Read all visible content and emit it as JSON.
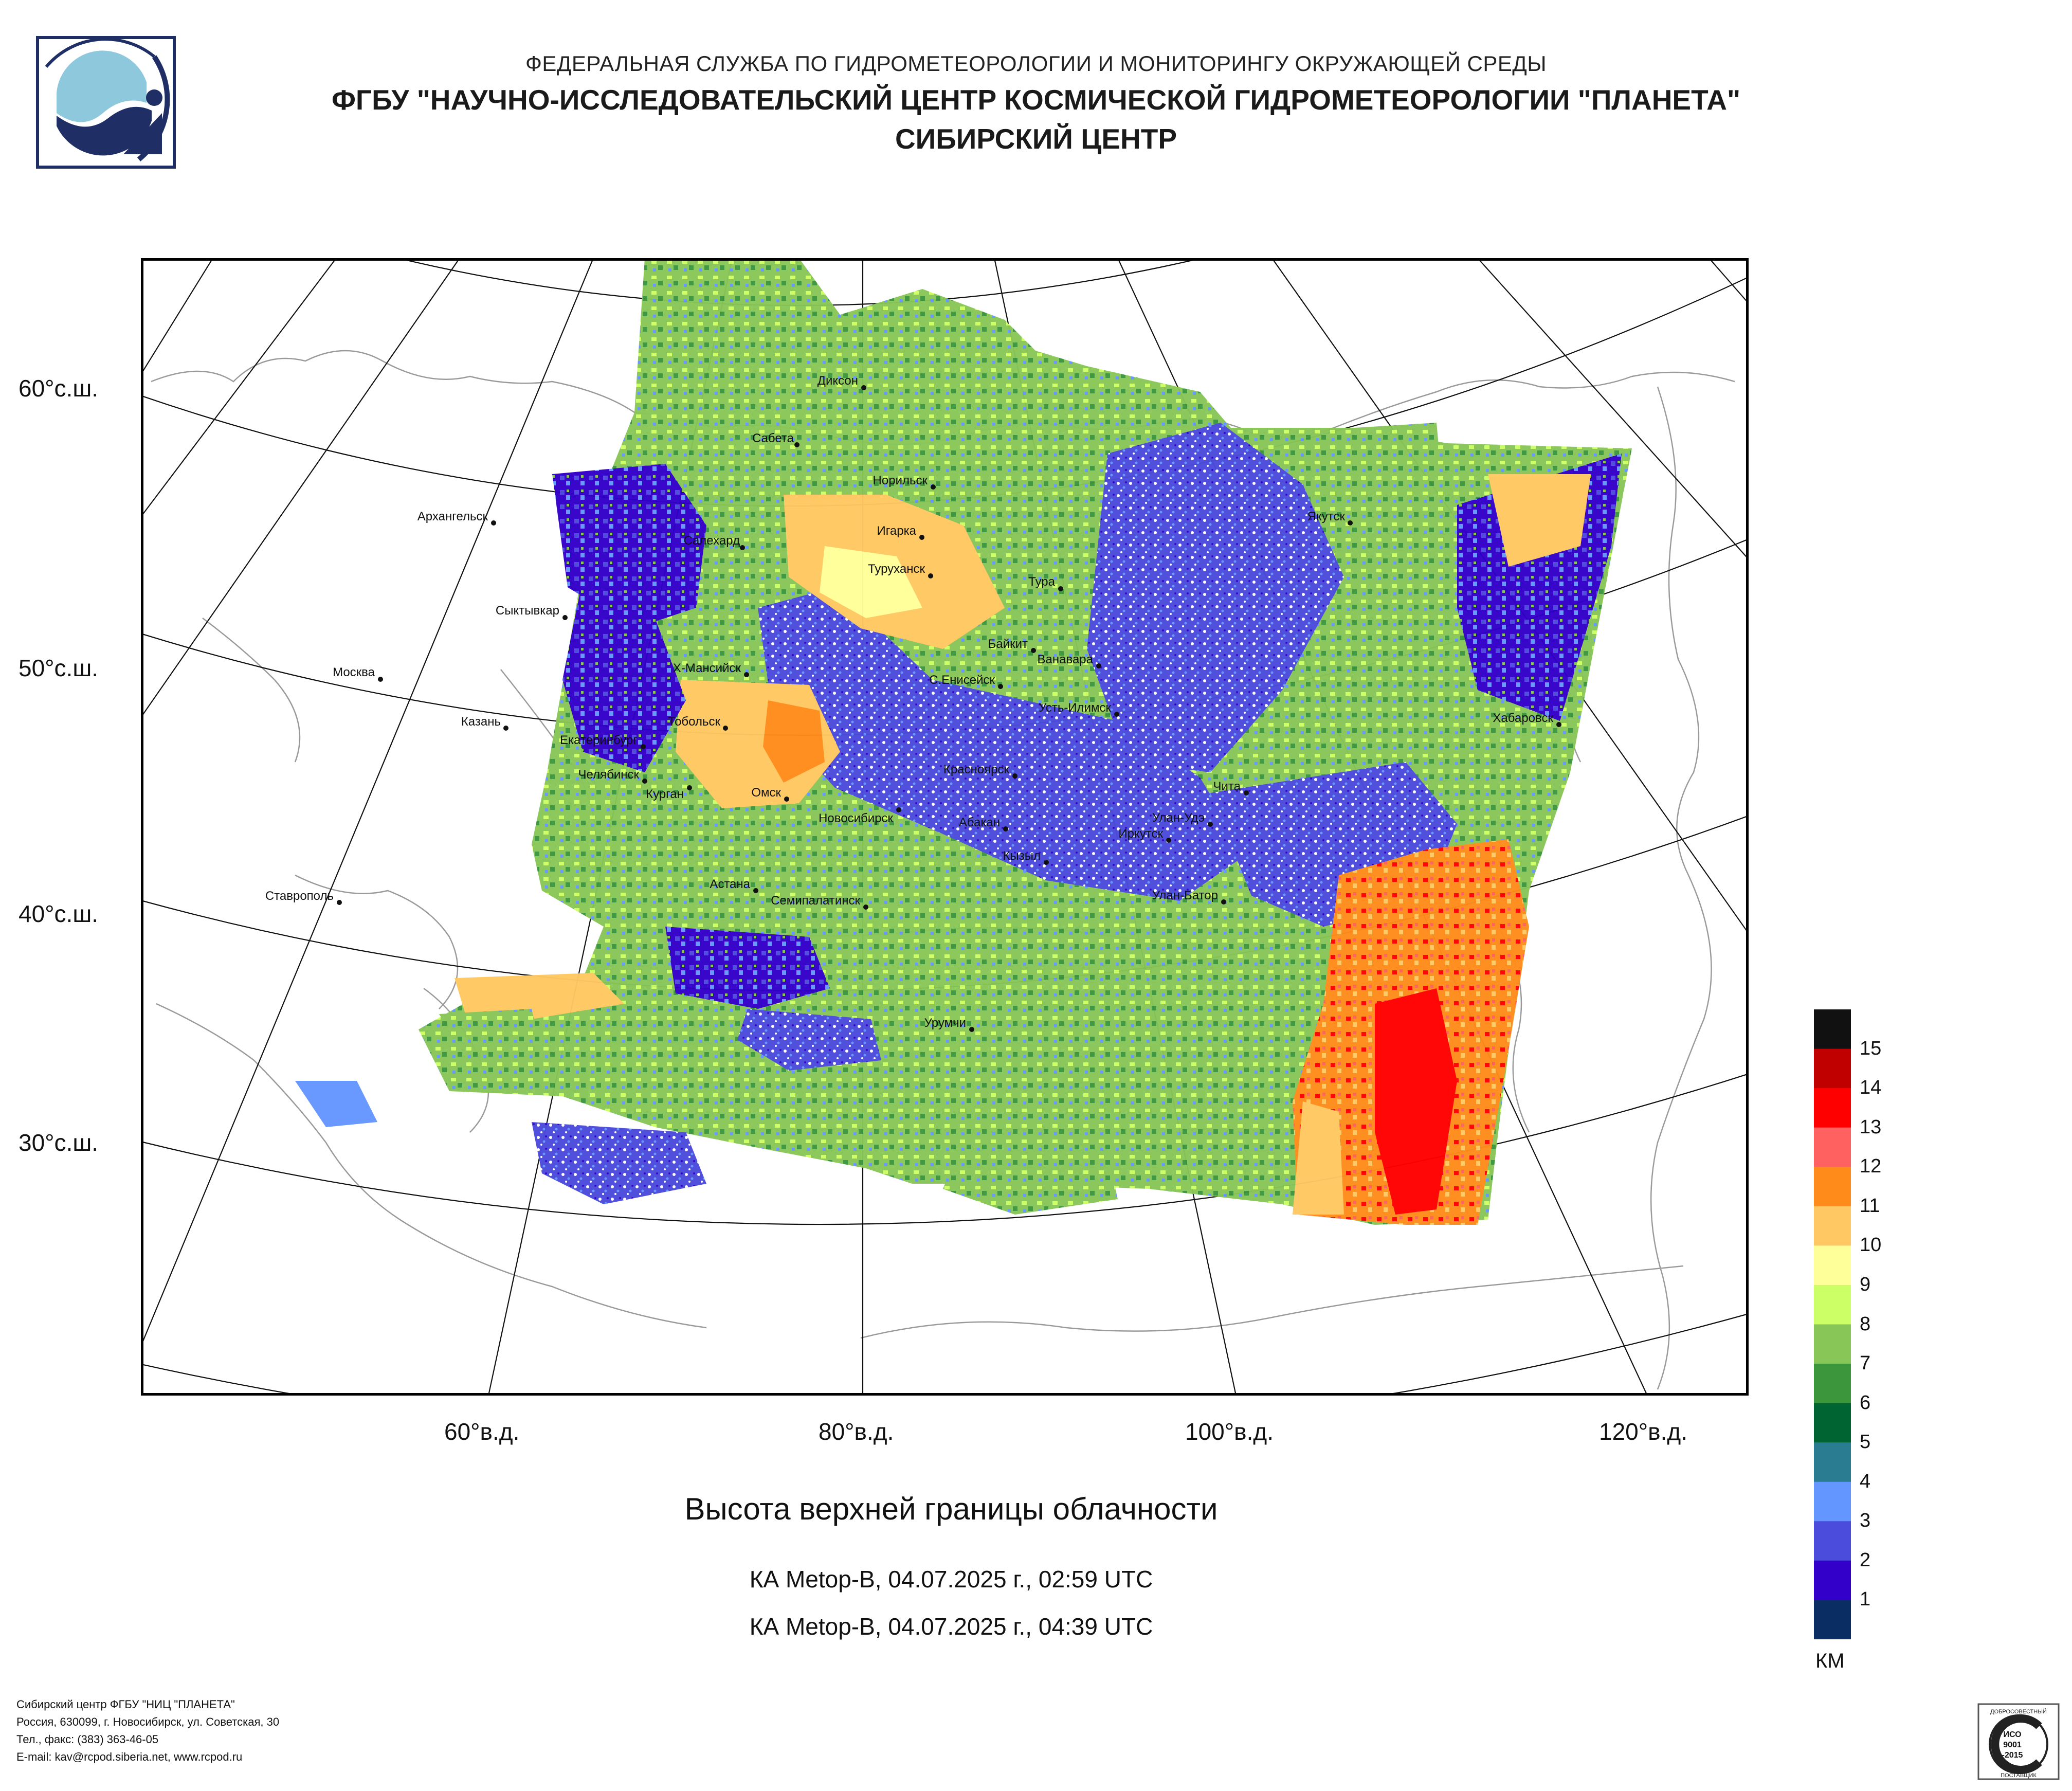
{
  "header": {
    "line1": "ФЕДЕРАЛЬНАЯ СЛУЖБА ПО ГИДРОМЕТЕОРОЛОГИИ И МОНИТОРИНГУ ОКРУЖАЮЩЕЙ СРЕДЫ",
    "line2": "ФГБУ \"НАУЧНО-ИССЛЕДОВАТЕЛЬСКИЙ ЦЕНТР КОСМИЧЕСКОЙ ГИДРОМЕТЕОРОЛОГИИ \"ПЛАНЕТА\"",
    "line3": "СИБИРСКИЙ ЦЕНТР"
  },
  "map": {
    "lat_labels": [
      "60°с.ш.",
      "50°с.ш.",
      "40°с.ш.",
      "30°с.ш."
    ],
    "lon_labels": [
      "60°в.д.",
      "80°в.д.",
      "100°в.д.",
      "120°в.д."
    ],
    "cities": [
      "Диксон",
      "Сабета",
      "Норильск",
      "Игарка",
      "Салехард",
      "Архангельск",
      "Туруханск",
      "Тура",
      "Якутск",
      "Сыктывкар",
      "Байкит",
      "Ванавара",
      "Х-Мансийск",
      "С.Енисейск",
      "Москва",
      "Усть-Илимск",
      "Казань",
      "Тобольск",
      "Екатеринбург",
      "Хабаровск",
      "Красноярск",
      "Челябинск",
      "Курган",
      "Омск",
      "Чита",
      "Новосибирск",
      "Абакан",
      "Улан-Удэ",
      "Иркутск",
      "Кызыл",
      "Астана",
      "Ставрополь",
      "Улан-Батор",
      "Семипалатинск",
      "Урумчи"
    ]
  },
  "title": "Высота верхней границы облачности",
  "passes": [
    "КА Metop-B, 04.07.2025 г., 02:59 UTC",
    "КА Metop-B, 04.07.2025 г., 04:39 UTC"
  ],
  "legend": {
    "unit": "КМ",
    "ticks": [
      "15",
      "14",
      "13",
      "12",
      "11",
      "10",
      "9",
      "8",
      "7",
      "6",
      "5",
      "4",
      "3",
      "2",
      "1"
    ],
    "colors": [
      "#111111",
      "#c00000",
      "#ff0000",
      "#ff6060",
      "#ff8c1a",
      "#ffc862",
      "#ffff99",
      "#ccff66",
      "#88c657",
      "#3c963c",
      "#006432",
      "#2a7d90",
      "#6496ff",
      "#4b4bdc",
      "#3200c8",
      "#0a2d64"
    ]
  },
  "footer": {
    "line1": "Сибирский центр ФГБУ \"НИЦ \"ПЛАНЕТА\"",
    "line2": "Россия, 630099, г. Новосибирск, ул. Советская, 30",
    "line3": "Тел., факс: (383) 363-46-05",
    "line4": "E-mail: kav@rcpod.siberia.net, www.rcpod.ru"
  },
  "cert": {
    "top": "ДОБРОСОВЕСТНЫЙ",
    "l1": "ИСО",
    "l2": "9001",
    "l3": "-2015",
    "bottom": "ПОСТАВЩИК"
  }
}
